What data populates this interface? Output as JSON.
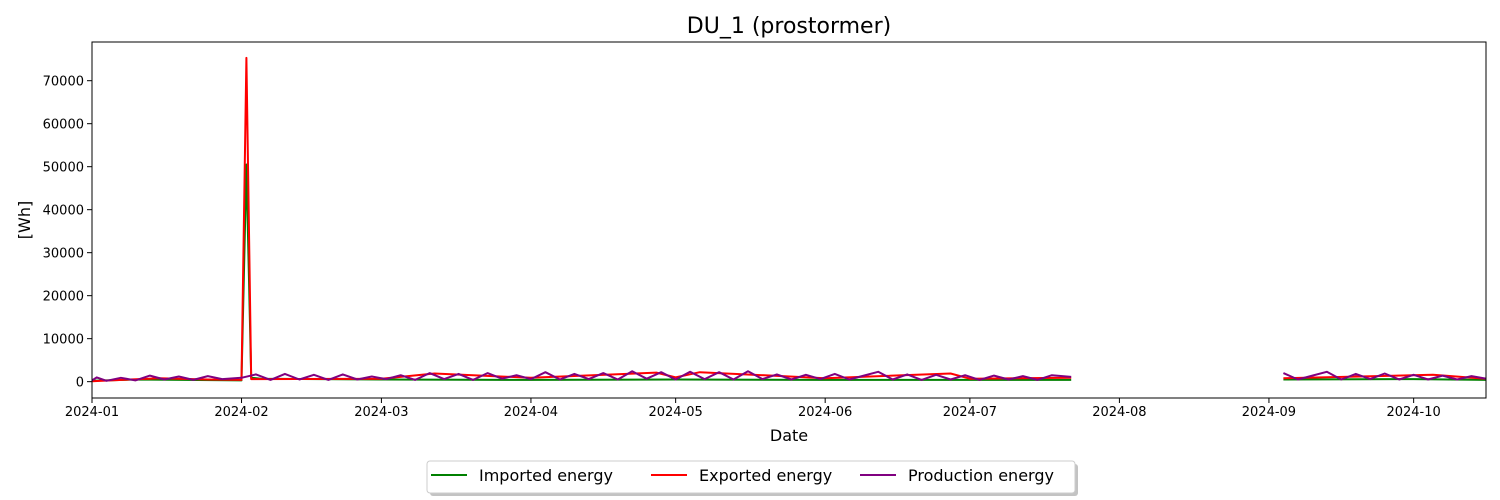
{
  "chart_data": {
    "type": "line",
    "title": "DU_1 (prostormer)",
    "xlabel": "Date",
    "ylabel": "[Wh]",
    "xlim": [
      "2024-01-01",
      "2024-10-16"
    ],
    "ylim": [
      -3800,
      79000
    ],
    "x_ticks": [
      "2024-01",
      "2024-02",
      "2024-03",
      "2024-04",
      "2024-05",
      "2024-06",
      "2024-07",
      "2024-08",
      "2024-09",
      "2024-10"
    ],
    "y_ticks": [
      0,
      10000,
      20000,
      30000,
      40000,
      50000,
      60000,
      70000
    ],
    "grid": false,
    "legend_position": "bottom-center",
    "gap": [
      "2024-07-23",
      "2024-09-03"
    ],
    "series": [
      {
        "name": "Imported energy",
        "color": "#008000",
        "points": [
          [
            "2024-01-01",
            200
          ],
          [
            "2024-01-10",
            500
          ],
          [
            "2024-01-20",
            400
          ],
          [
            "2024-02-01",
            300
          ],
          [
            "2024-02-02",
            50500
          ],
          [
            "2024-02-03",
            900
          ],
          [
            "2024-02-05",
            700
          ],
          [
            "2024-03-01",
            500
          ],
          [
            "2024-04-01",
            400
          ],
          [
            "2024-05-01",
            500
          ],
          [
            "2024-06-01",
            400
          ],
          [
            "2024-07-01",
            400
          ],
          [
            "2024-07-22",
            400
          ],
          [
            "2024-09-04",
            500
          ],
          [
            "2024-10-01",
            600
          ],
          [
            "2024-10-16",
            400
          ]
        ]
      },
      {
        "name": "Exported energy",
        "color": "#ff0000",
        "points": [
          [
            "2024-01-01",
            100
          ],
          [
            "2024-01-15",
            800
          ],
          [
            "2024-01-25",
            500
          ],
          [
            "2024-02-01",
            400
          ],
          [
            "2024-02-02",
            75300
          ],
          [
            "2024-02-03",
            600
          ],
          [
            "2024-03-01",
            700
          ],
          [
            "2024-03-12",
            1900
          ],
          [
            "2024-04-01",
            900
          ],
          [
            "2024-04-27",
            2100
          ],
          [
            "2024-05-01",
            1000
          ],
          [
            "2024-05-06",
            2200
          ],
          [
            "2024-06-01",
            800
          ],
          [
            "2024-06-27",
            1900
          ],
          [
            "2024-07-01",
            700
          ],
          [
            "2024-07-22",
            900
          ],
          [
            "2024-09-04",
            800
          ],
          [
            "2024-10-05",
            1600
          ],
          [
            "2024-10-16",
            700
          ]
        ]
      },
      {
        "name": "Production energy",
        "color": "#800080",
        "points": [
          [
            "2024-01-01",
            300
          ],
          [
            "2024-01-02",
            1000
          ],
          [
            "2024-01-04",
            200
          ],
          [
            "2024-01-07",
            900
          ],
          [
            "2024-01-10",
            300
          ],
          [
            "2024-01-13",
            1400
          ],
          [
            "2024-01-16",
            500
          ],
          [
            "2024-01-19",
            1200
          ],
          [
            "2024-01-22",
            400
          ],
          [
            "2024-01-25",
            1300
          ],
          [
            "2024-01-28",
            600
          ],
          [
            "2024-02-01",
            900
          ],
          [
            "2024-02-04",
            1700
          ],
          [
            "2024-02-07",
            400
          ],
          [
            "2024-02-10",
            1800
          ],
          [
            "2024-02-13",
            500
          ],
          [
            "2024-02-16",
            1600
          ],
          [
            "2024-02-19",
            400
          ],
          [
            "2024-02-22",
            1700
          ],
          [
            "2024-02-25",
            500
          ],
          [
            "2024-02-28",
            1200
          ],
          [
            "2024-03-02",
            600
          ],
          [
            "2024-03-05",
            1500
          ],
          [
            "2024-03-08",
            400
          ],
          [
            "2024-03-11",
            2000
          ],
          [
            "2024-03-14",
            600
          ],
          [
            "2024-03-17",
            1800
          ],
          [
            "2024-03-20",
            400
          ],
          [
            "2024-03-23",
            2000
          ],
          [
            "2024-03-26",
            700
          ],
          [
            "2024-03-29",
            1500
          ],
          [
            "2024-04-01",
            600
          ],
          [
            "2024-04-04",
            2200
          ],
          [
            "2024-04-07",
            500
          ],
          [
            "2024-04-10",
            1800
          ],
          [
            "2024-04-13",
            600
          ],
          [
            "2024-04-16",
            2000
          ],
          [
            "2024-04-19",
            500
          ],
          [
            "2024-04-22",
            2400
          ],
          [
            "2024-04-25",
            700
          ],
          [
            "2024-04-28",
            2200
          ],
          [
            "2024-05-01",
            500
          ],
          [
            "2024-05-04",
            2300
          ],
          [
            "2024-05-07",
            600
          ],
          [
            "2024-05-10",
            2200
          ],
          [
            "2024-05-13",
            500
          ],
          [
            "2024-05-16",
            2400
          ],
          [
            "2024-05-19",
            600
          ],
          [
            "2024-05-22",
            1700
          ],
          [
            "2024-05-25",
            500
          ],
          [
            "2024-05-28",
            1600
          ],
          [
            "2024-05-31",
            600
          ],
          [
            "2024-06-03",
            1800
          ],
          [
            "2024-06-06",
            500
          ],
          [
            "2024-06-09",
            1400
          ],
          [
            "2024-06-12",
            2300
          ],
          [
            "2024-06-15",
            500
          ],
          [
            "2024-06-18",
            1700
          ],
          [
            "2024-06-21",
            400
          ],
          [
            "2024-06-24",
            1600
          ],
          [
            "2024-06-27",
            500
          ],
          [
            "2024-06-30",
            1500
          ],
          [
            "2024-07-03",
            400
          ],
          [
            "2024-07-06",
            1400
          ],
          [
            "2024-07-09",
            500
          ],
          [
            "2024-07-12",
            1300
          ],
          [
            "2024-07-15",
            400
          ],
          [
            "2024-07-18",
            1500
          ],
          [
            "2024-07-22",
            1100
          ],
          [
            "2024-09-04",
            2000
          ],
          [
            "2024-09-07",
            500
          ],
          [
            "2024-09-10",
            1400
          ],
          [
            "2024-09-13",
            2300
          ],
          [
            "2024-09-16",
            500
          ],
          [
            "2024-09-19",
            1800
          ],
          [
            "2024-09-22",
            600
          ],
          [
            "2024-09-25",
            1900
          ],
          [
            "2024-09-28",
            500
          ],
          [
            "2024-10-01",
            1600
          ],
          [
            "2024-10-04",
            500
          ],
          [
            "2024-10-07",
            1400
          ],
          [
            "2024-10-10",
            500
          ],
          [
            "2024-10-13",
            1300
          ],
          [
            "2024-10-16",
            700
          ]
        ]
      }
    ]
  }
}
